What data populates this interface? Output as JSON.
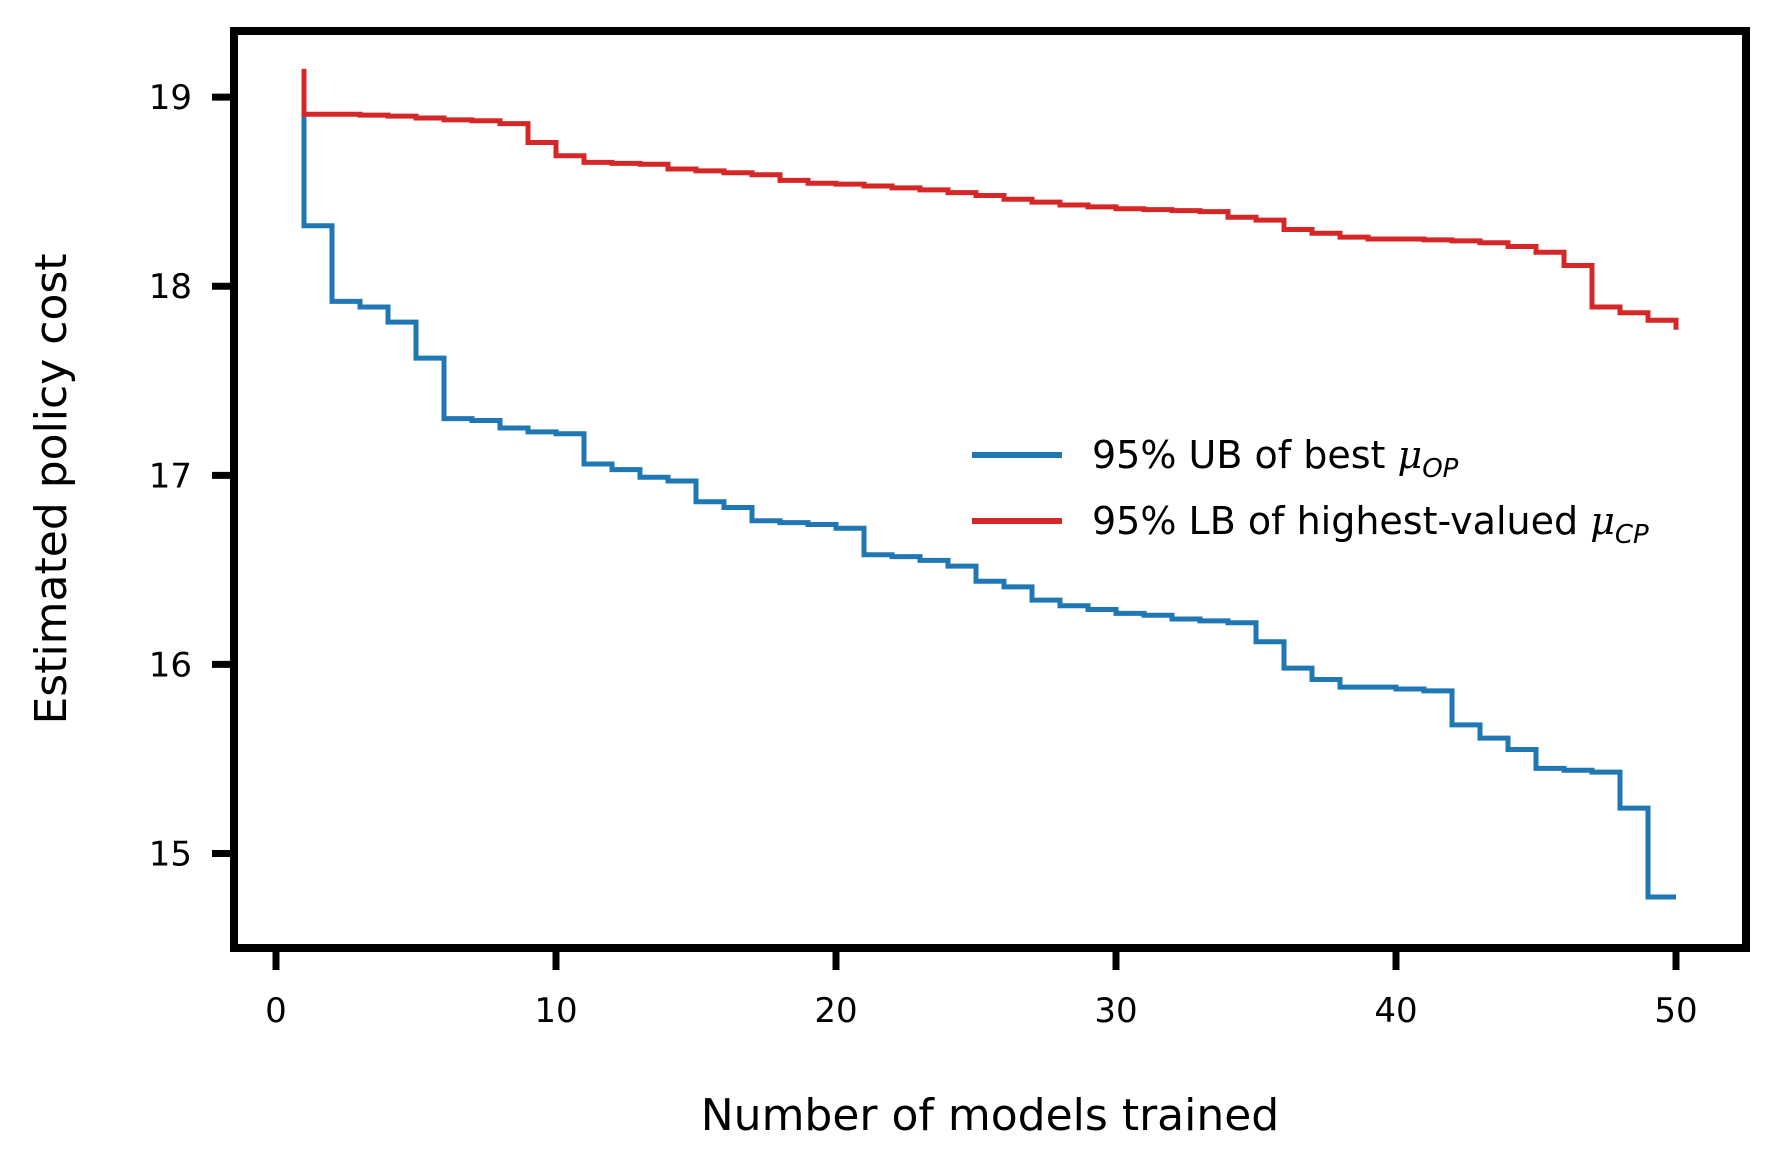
{
  "chart_data": {
    "type": "line",
    "step": true,
    "title": "",
    "xlabel": "Number of models trained",
    "ylabel": "Estimated policy cost",
    "xlim": [
      -1.5,
      52.5
    ],
    "ylim": [
      14.5,
      19.35
    ],
    "xticks": [
      0,
      10,
      20,
      30,
      40,
      50
    ],
    "yticks": [
      15,
      16,
      17,
      18,
      19
    ],
    "legend_position": "center-right",
    "series": [
      {
        "name": "95% UB of best",
        "legend_prefix": "95% UB of best ",
        "legend_symbol": "μ",
        "legend_subscript": "OP",
        "color": "#1f77b4",
        "x": [
          1,
          2,
          3,
          4,
          5,
          6,
          7,
          8,
          9,
          10,
          11,
          12,
          13,
          14,
          15,
          16,
          17,
          18,
          19,
          20,
          21,
          22,
          23,
          24,
          25,
          26,
          27,
          28,
          29,
          30,
          31,
          32,
          33,
          34,
          35,
          36,
          37,
          38,
          39,
          40,
          41,
          42,
          43,
          44,
          45,
          46,
          47,
          48,
          49,
          50
        ],
        "values": [
          18.32,
          17.92,
          17.89,
          17.81,
          17.62,
          17.3,
          17.29,
          17.25,
          17.23,
          17.22,
          17.06,
          17.03,
          16.99,
          16.97,
          16.86,
          16.83,
          16.76,
          16.75,
          16.74,
          16.72,
          16.58,
          16.57,
          16.55,
          16.52,
          16.44,
          16.41,
          16.34,
          16.31,
          16.29,
          16.27,
          16.26,
          16.24,
          16.23,
          16.22,
          16.12,
          15.98,
          15.92,
          15.88,
          15.88,
          15.87,
          15.86,
          15.68,
          15.61,
          15.55,
          15.45,
          15.44,
          15.43,
          15.24,
          14.77,
          14.77
        ],
        "start_value": 18.92
      },
      {
        "name": "95% LB of highest-valued",
        "legend_prefix": "95% LB of highest-valued ",
        "legend_symbol": "μ",
        "legend_subscript": "CP",
        "color": "#d62728",
        "x": [
          1,
          2,
          3,
          4,
          5,
          6,
          7,
          8,
          9,
          10,
          11,
          12,
          13,
          14,
          15,
          16,
          17,
          18,
          19,
          20,
          21,
          22,
          23,
          24,
          25,
          26,
          27,
          28,
          29,
          30,
          31,
          32,
          33,
          34,
          35,
          36,
          37,
          38,
          39,
          40,
          41,
          42,
          43,
          44,
          45,
          46,
          47,
          48,
          49,
          50
        ],
        "values": [
          18.91,
          18.91,
          18.905,
          18.9,
          18.89,
          18.88,
          18.875,
          18.86,
          18.76,
          18.69,
          18.655,
          18.65,
          18.645,
          18.62,
          18.61,
          18.6,
          18.59,
          18.56,
          18.545,
          18.54,
          18.53,
          18.52,
          18.51,
          18.495,
          18.48,
          18.46,
          18.445,
          18.43,
          18.42,
          18.41,
          18.405,
          18.4,
          18.395,
          18.365,
          18.35,
          18.3,
          18.28,
          18.26,
          18.25,
          18.25,
          18.245,
          18.24,
          18.23,
          18.21,
          18.18,
          18.11,
          17.89,
          17.86,
          17.82,
          17.77
        ],
        "start_value": 19.15
      }
    ]
  }
}
